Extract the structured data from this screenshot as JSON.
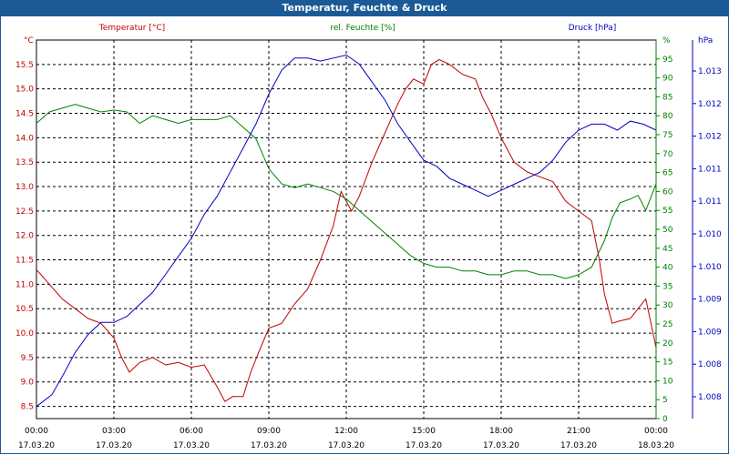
{
  "window": {
    "title": "Temperatur, Feuchte & Druck"
  },
  "colors": {
    "temperature": "#c00000",
    "humidity": "#008000",
    "pressure": "#0000c0",
    "grid": "#000000"
  },
  "chart_data": {
    "type": "line",
    "title": "Temperatur, Feuchte & Druck",
    "axes": {
      "temperature": {
        "label": "Temperatur [°C]",
        "unit": "°C",
        "min": 8.25,
        "max": 16.0,
        "ticks": [
          "15.5",
          "15.0",
          "14.5",
          "14.0",
          "13.5",
          "13.0",
          "12.5",
          "12.0",
          "11.5",
          "11.0",
          "10.5",
          "10.0",
          "9.5",
          "9.0",
          "8.5"
        ]
      },
      "humidity": {
        "label": "rel. Feuchte [%]",
        "unit": "%",
        "min": 0,
        "max": 100,
        "ticks": [
          "95",
          "90",
          "85",
          "80",
          "75",
          "70",
          "65",
          "60",
          "55",
          "50",
          "45",
          "40",
          "35",
          "30",
          "25",
          "20",
          "15",
          "10",
          "5",
          "0"
        ]
      },
      "pressure": {
        "label": "Druck [hPa]",
        "unit": "hPa",
        "min": 1007.4,
        "max": 1013.7,
        "ticks": [
          "1.013",
          "1.012",
          "1.012",
          "1.011",
          "1.011",
          "1.010",
          "1.010",
          "1.009",
          "1.009",
          "1.008",
          "1.008"
        ]
      }
    },
    "x_ticks": [
      {
        "time": "00:00",
        "date": "17.03.20"
      },
      {
        "time": "03:00",
        "date": "17.03.20"
      },
      {
        "time": "06:00",
        "date": "17.03.20"
      },
      {
        "time": "09:00",
        "date": "17.03.20"
      },
      {
        "time": "12:00",
        "date": "17.03.20"
      },
      {
        "time": "15:00",
        "date": "17.03.20"
      },
      {
        "time": "18:00",
        "date": "17.03.20"
      },
      {
        "time": "21:00",
        "date": "17.03.20"
      },
      {
        "time": "00:00",
        "date": "18.03.20"
      }
    ],
    "x_range_hours": [
      0,
      24
    ],
    "series": [
      {
        "name": "Temperatur",
        "axis": "temperature",
        "color": "#c00000",
        "points": [
          [
            0,
            11.3
          ],
          [
            0.5,
            11.0
          ],
          [
            1,
            10.7
          ],
          [
            1.5,
            10.5
          ],
          [
            2,
            10.3
          ],
          [
            2.5,
            10.2
          ],
          [
            3,
            9.9
          ],
          [
            3.3,
            9.5
          ],
          [
            3.6,
            9.2
          ],
          [
            4,
            9.4
          ],
          [
            4.5,
            9.5
          ],
          [
            5,
            9.35
          ],
          [
            5.5,
            9.4
          ],
          [
            6,
            9.3
          ],
          [
            6.5,
            9.35
          ],
          [
            7,
            8.9
          ],
          [
            7.3,
            8.6
          ],
          [
            7.6,
            8.7
          ],
          [
            8,
            8.7
          ],
          [
            8.3,
            9.2
          ],
          [
            8.6,
            9.6
          ],
          [
            9,
            10.1
          ],
          [
            9.5,
            10.2
          ],
          [
            10,
            10.6
          ],
          [
            10.5,
            10.9
          ],
          [
            11,
            11.5
          ],
          [
            11.5,
            12.2
          ],
          [
            11.8,
            12.9
          ],
          [
            12,
            12.7
          ],
          [
            12.2,
            12.5
          ],
          [
            12.5,
            12.8
          ],
          [
            13,
            13.5
          ],
          [
            13.5,
            14.1
          ],
          [
            14,
            14.7
          ],
          [
            14.3,
            15.0
          ],
          [
            14.6,
            15.2
          ],
          [
            15,
            15.1
          ],
          [
            15.3,
            15.5
          ],
          [
            15.6,
            15.6
          ],
          [
            16,
            15.5
          ],
          [
            16.5,
            15.3
          ],
          [
            17,
            15.2
          ],
          [
            17.3,
            14.8
          ],
          [
            17.6,
            14.5
          ],
          [
            18,
            14.0
          ],
          [
            18.5,
            13.5
          ],
          [
            19,
            13.3
          ],
          [
            19.5,
            13.2
          ],
          [
            20,
            13.1
          ],
          [
            20.5,
            12.7
          ],
          [
            21,
            12.5
          ],
          [
            21.5,
            12.3
          ],
          [
            21.8,
            11.5
          ],
          [
            22,
            10.8
          ],
          [
            22.3,
            10.2
          ],
          [
            22.6,
            10.25
          ],
          [
            23,
            10.3
          ],
          [
            23.3,
            10.5
          ],
          [
            23.6,
            10.7
          ],
          [
            24,
            9.7
          ]
        ]
      },
      {
        "name": "rel. Feuchte",
        "axis": "humidity",
        "color": "#008000",
        "points": [
          [
            0,
            78
          ],
          [
            0.5,
            81
          ],
          [
            1,
            82
          ],
          [
            1.5,
            83
          ],
          [
            2,
            82
          ],
          [
            2.5,
            81
          ],
          [
            3,
            81.5
          ],
          [
            3.5,
            81
          ],
          [
            4,
            78
          ],
          [
            4.5,
            80
          ],
          [
            5,
            79
          ],
          [
            5.5,
            78
          ],
          [
            6,
            79
          ],
          [
            6.5,
            79
          ],
          [
            7,
            79
          ],
          [
            7.5,
            80
          ],
          [
            8,
            77
          ],
          [
            8.5,
            74
          ],
          [
            9,
            66
          ],
          [
            9.5,
            62
          ],
          [
            10,
            61
          ],
          [
            10.5,
            62
          ],
          [
            11,
            61
          ],
          [
            11.5,
            60
          ],
          [
            12,
            58
          ],
          [
            12.5,
            55
          ],
          [
            13,
            52
          ],
          [
            13.5,
            49
          ],
          [
            14,
            46
          ],
          [
            14.5,
            43
          ],
          [
            15,
            41
          ],
          [
            15.5,
            40
          ],
          [
            16,
            40
          ],
          [
            16.5,
            39
          ],
          [
            17,
            39
          ],
          [
            17.5,
            38
          ],
          [
            18,
            38
          ],
          [
            18.5,
            39
          ],
          [
            19,
            39
          ],
          [
            19.5,
            38
          ],
          [
            20,
            38
          ],
          [
            20.5,
            37
          ],
          [
            21,
            38
          ],
          [
            21.5,
            40
          ],
          [
            22,
            47
          ],
          [
            22.3,
            53
          ],
          [
            22.6,
            57
          ],
          [
            23,
            58
          ],
          [
            23.3,
            59
          ],
          [
            23.6,
            55
          ],
          [
            24,
            62
          ]
        ]
      },
      {
        "name": "Druck",
        "axis": "pressure",
        "color": "#0000c0",
        "points": [
          [
            0,
            1007.6
          ],
          [
            0.3,
            1007.7
          ],
          [
            0.6,
            1007.8
          ],
          [
            1,
            1008.1
          ],
          [
            1.5,
            1008.5
          ],
          [
            2,
            1008.8
          ],
          [
            2.5,
            1009.0
          ],
          [
            3,
            1009.0
          ],
          [
            3.5,
            1009.1
          ],
          [
            4,
            1009.3
          ],
          [
            4.5,
            1009.5
          ],
          [
            5,
            1009.8
          ],
          [
            5.5,
            1010.1
          ],
          [
            6,
            1010.4
          ],
          [
            6.5,
            1010.8
          ],
          [
            7,
            1011.1
          ],
          [
            7.5,
            1011.5
          ],
          [
            8,
            1011.9
          ],
          [
            8.5,
            1012.3
          ],
          [
            9,
            1012.8
          ],
          [
            9.5,
            1013.2
          ],
          [
            10,
            1013.4
          ],
          [
            10.5,
            1013.4
          ],
          [
            11,
            1013.35
          ],
          [
            11.5,
            1013.4
          ],
          [
            12,
            1013.45
          ],
          [
            12.5,
            1013.3
          ],
          [
            13,
            1013.0
          ],
          [
            13.5,
            1012.7
          ],
          [
            14,
            1012.3
          ],
          [
            14.5,
            1012.0
          ],
          [
            15,
            1011.7
          ],
          [
            15.5,
            1011.6
          ],
          [
            16,
            1011.4
          ],
          [
            16.5,
            1011.3
          ],
          [
            17,
            1011.2
          ],
          [
            17.5,
            1011.1
          ],
          [
            18,
            1011.2
          ],
          [
            18.5,
            1011.3
          ],
          [
            19,
            1011.4
          ],
          [
            19.5,
            1011.5
          ],
          [
            20,
            1011.7
          ],
          [
            20.5,
            1012.0
          ],
          [
            21,
            1012.2
          ],
          [
            21.5,
            1012.3
          ],
          [
            22,
            1012.3
          ],
          [
            22.5,
            1012.2
          ],
          [
            23,
            1012.35
          ],
          [
            23.5,
            1012.3
          ],
          [
            24,
            1012.2
          ]
        ]
      }
    ]
  }
}
